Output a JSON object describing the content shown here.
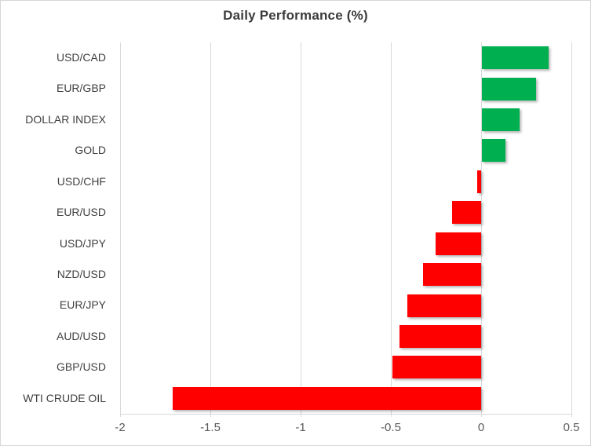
{
  "chart_data": {
    "type": "bar",
    "orientation": "horizontal",
    "title": "Daily Performance (%)",
    "categories": [
      "USD/CAD",
      "EUR/GBP",
      "DOLLAR INDEX",
      "GOLD",
      "USD/CHF",
      "EUR/USD",
      "USD/JPY",
      "NZD/USD",
      "EUR/JPY",
      "AUD/USD",
      "GBP/USD",
      "WTI CRUDE OIL"
    ],
    "values": [
      0.37,
      0.3,
      0.21,
      0.13,
      -0.02,
      -0.16,
      -0.25,
      -0.32,
      -0.41,
      -0.45,
      -0.49,
      -1.71
    ],
    "xlabel": "",
    "ylabel": "",
    "xlim": [
      -2,
      0.5
    ],
    "xticks": [
      -2,
      -1.5,
      -1,
      -0.5,
      0,
      0.5
    ],
    "xtick_labels": [
      "-2",
      "-1.5",
      "-1",
      "-0.5",
      "0",
      "0.5"
    ],
    "grid": true,
    "legend": false,
    "colors": {
      "positive": "#00b050",
      "negative": "#ff0000",
      "gridline": "#d9d9d9",
      "title_text": "#3b3b3b",
      "label_text": "#404040",
      "tick_text": "#595959"
    }
  }
}
